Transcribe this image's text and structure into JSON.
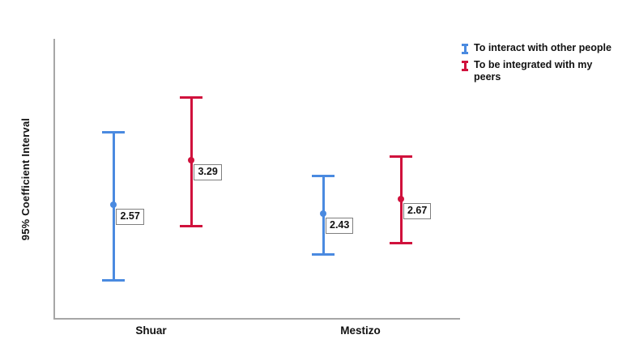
{
  "colors": {
    "background": "#ffffff",
    "axis": "#a6a6a6",
    "text": "#111111",
    "label_box_border": "#7f7f7f",
    "series_blue": "#4a8ae0",
    "series_red": "#d0113c"
  },
  "chart_data": {
    "type": "errorbar",
    "title": "",
    "xlabel": "",
    "ylabel": "95% Coefficient Interval",
    "categories": [
      "Shuar",
      "Mestizo"
    ],
    "ylim": [
      0.75,
      5.25
    ],
    "y_tick_labels_visible": false,
    "grid": false,
    "legend_position": "top-right",
    "series": [
      {
        "name": "To interact with other people",
        "color": "#4a8ae0",
        "points": [
          {
            "category": "Shuar",
            "mean": 2.57,
            "label": "2.57",
            "ci_low": 1.37,
            "ci_high": 3.76
          },
          {
            "category": "Mestizo",
            "mean": 2.43,
            "label": "2.43",
            "ci_low": 1.79,
            "ci_high": 3.06
          }
        ]
      },
      {
        "name": "To be integrated with my peers",
        "color": "#d0113c",
        "points": [
          {
            "category": "Shuar",
            "mean": 3.29,
            "label": "3.29",
            "ci_low": 2.25,
            "ci_high": 4.32
          },
          {
            "category": "Mestizo",
            "mean": 2.67,
            "label": "2.67",
            "ci_low": 1.98,
            "ci_high": 3.37
          }
        ]
      }
    ]
  }
}
